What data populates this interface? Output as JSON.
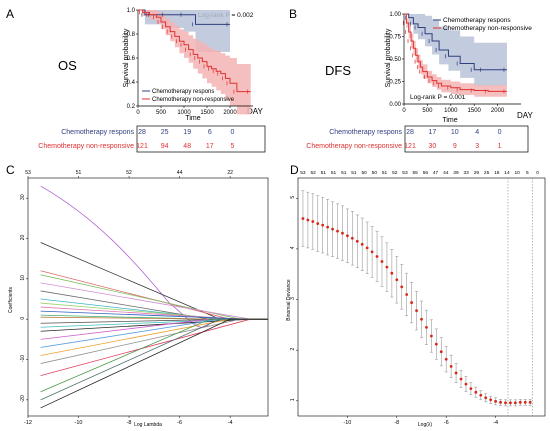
{
  "panels": {
    "A": {
      "letter": "A",
      "label": "OS",
      "pvalue": "Log-rank  P = 0.002"
    },
    "B": {
      "letter": "B",
      "label": "DFS",
      "pvalue": "Log-rank  P = 0.001"
    },
    "C": {
      "letter": "C"
    },
    "D": {
      "letter": "D"
    }
  },
  "colors": {
    "respons": "#2f3f7f",
    "nonresp": "#e03030",
    "respons_band": "#b9c2d8",
    "nonresp_band": "#f4b4b4",
    "lasso_point": "#d8281c",
    "grey": "#9a9a9a"
  },
  "legend": {
    "respons": "Chemotherapy respons",
    "nonresp": "Chemotherapy non-responsive"
  },
  "risk_table": {
    "A": {
      "respons": [
        "28",
        "25",
        "19",
        "6",
        "0"
      ],
      "nonresp": [
        "121",
        "94",
        "48",
        "17",
        "5"
      ]
    },
    "B": {
      "respons": [
        "28",
        "17",
        "10",
        "4",
        "0"
      ],
      "nonresp": [
        "121",
        "30",
        "9",
        "3",
        "1"
      ]
    }
  },
  "chart_data": [
    {
      "type": "line",
      "panel": "A",
      "xlabel": "Time",
      "ylabel": "Survival probability",
      "x_unit": "DAY",
      "xlim": [
        0,
        2500
      ],
      "ylim": [
        0.2,
        1.0
      ],
      "xticks": [
        "0",
        "500",
        "1000",
        "1500",
        "2000"
      ],
      "yticks": [
        "0.2",
        "0.4",
        "0.6",
        "0.8",
        "1.0"
      ],
      "series": [
        {
          "name": "Chemotherapy respons",
          "x": [
            0,
            150,
            300,
            600,
            1000,
            1250,
            2000
          ],
          "y": [
            1.0,
            0.96,
            0.96,
            0.96,
            0.96,
            0.88,
            0.88
          ],
          "lower": [
            1.0,
            0.88,
            0.88,
            0.85,
            0.82,
            0.65,
            0.65
          ],
          "upper": [
            1.0,
            1.0,
            1.0,
            1.0,
            1.0,
            1.0,
            1.0
          ]
        },
        {
          "name": "Chemotherapy non-responsive",
          "x": [
            0,
            100,
            250,
            400,
            500,
            600,
            700,
            800,
            900,
            1000,
            1100,
            1200,
            1300,
            1400,
            1500,
            1600,
            1700,
            1800,
            1900,
            2000,
            2150,
            2450
          ],
          "y": [
            1.0,
            0.98,
            0.96,
            0.94,
            0.9,
            0.86,
            0.82,
            0.78,
            0.74,
            0.71,
            0.67,
            0.63,
            0.6,
            0.57,
            0.53,
            0.51,
            0.49,
            0.47,
            0.43,
            0.39,
            0.32,
            0.32
          ],
          "lower": [
            1.0,
            0.95,
            0.92,
            0.89,
            0.84,
            0.79,
            0.74,
            0.69,
            0.64,
            0.6,
            0.56,
            0.51,
            0.47,
            0.43,
            0.39,
            0.36,
            0.33,
            0.3,
            0.25,
            0.2,
            0.13,
            0.13
          ],
          "upper": [
            1.0,
            1.0,
            1.0,
            0.99,
            0.96,
            0.93,
            0.9,
            0.87,
            0.84,
            0.82,
            0.79,
            0.76,
            0.74,
            0.72,
            0.69,
            0.67,
            0.66,
            0.64,
            0.62,
            0.6,
            0.55,
            0.55
          ]
        }
      ]
    },
    {
      "type": "line",
      "panel": "B",
      "xlabel": "Time",
      "ylabel": "Survival probability",
      "x_unit": "DAY",
      "xlim": [
        0,
        2500
      ],
      "ylim": [
        0,
        1.0
      ],
      "xticks": [
        "0",
        "500",
        "1000",
        "1500",
        "2000"
      ],
      "yticks": [
        "0.00",
        "0.25",
        "0.50",
        "0.75",
        "1.00"
      ],
      "series": [
        {
          "name": "Chemotherapy respons",
          "x": [
            0,
            100,
            200,
            300,
            450,
            600,
            750,
            950,
            1200,
            1500,
            1700,
            2200
          ],
          "y": [
            1.0,
            0.96,
            0.89,
            0.85,
            0.78,
            0.7,
            0.6,
            0.53,
            0.45,
            0.38,
            0.38,
            0.38
          ],
          "lower": [
            1.0,
            0.88,
            0.78,
            0.72,
            0.64,
            0.55,
            0.44,
            0.37,
            0.29,
            0.2,
            0.2,
            0.2
          ],
          "upper": [
            1.0,
            1.0,
            1.0,
            1.0,
            0.98,
            0.94,
            0.86,
            0.82,
            0.75,
            0.68,
            0.68,
            0.68
          ]
        },
        {
          "name": "Chemotherapy non-responsive",
          "x": [
            0,
            50,
            100,
            150,
            200,
            250,
            300,
            350,
            400,
            500,
            600,
            700,
            800,
            1000,
            1200,
            1500,
            1800,
            2200
          ],
          "y": [
            1.0,
            0.9,
            0.8,
            0.7,
            0.62,
            0.54,
            0.47,
            0.41,
            0.36,
            0.3,
            0.26,
            0.23,
            0.2,
            0.18,
            0.16,
            0.15,
            0.14,
            0.14
          ],
          "lower": [
            1.0,
            0.85,
            0.73,
            0.62,
            0.54,
            0.46,
            0.39,
            0.33,
            0.28,
            0.23,
            0.19,
            0.16,
            0.13,
            0.11,
            0.1,
            0.08,
            0.08,
            0.08
          ],
          "upper": [
            1.0,
            0.95,
            0.87,
            0.78,
            0.7,
            0.62,
            0.55,
            0.49,
            0.44,
            0.37,
            0.33,
            0.3,
            0.27,
            0.25,
            0.23,
            0.21,
            0.21,
            0.21
          ]
        }
      ]
    },
    {
      "type": "line",
      "panel": "C",
      "xlabel": "Log Lambda",
      "ylabel": "Coefficients",
      "xlim": [
        -12,
        -2.5
      ],
      "ylim": [
        -24,
        35
      ],
      "xticks": [
        "-12",
        "-10",
        "-8",
        "-6",
        "-4"
      ],
      "yticks": [
        "-20",
        "-10",
        "0",
        "10",
        "20",
        "30"
      ],
      "top_ticks": [
        "53",
        "51",
        "52",
        "44",
        "22"
      ],
      "top_tick_x": [
        -12,
        -10,
        -8,
        -6,
        -4
      ],
      "path_end_x": -4,
      "paths": [
        {
          "start": 33,
          "color": "#b060d0",
          "wiggle": true
        },
        {
          "start": 19,
          "color": "#333333"
        },
        {
          "start": 12,
          "color": "#e06a6a"
        },
        {
          "start": 11,
          "color": "#7fbf5f"
        },
        {
          "start": 9,
          "color": "#d090d0"
        },
        {
          "start": 7,
          "color": "#6a6a6a"
        },
        {
          "start": 5,
          "color": "#3cb4c8"
        },
        {
          "start": 4,
          "color": "#9ad06a"
        },
        {
          "start": 3,
          "color": "#e07ab0"
        },
        {
          "start": 2,
          "color": "#3060c0"
        },
        {
          "start": 1,
          "color": "#40b070"
        },
        {
          "start": 0.5,
          "color": "#c08040"
        },
        {
          "start": -1,
          "color": "#505050"
        },
        {
          "start": -2,
          "color": "#40c0c0"
        },
        {
          "start": -3,
          "color": "#2a2a2a"
        },
        {
          "start": -5,
          "color": "#d060d0"
        },
        {
          "start": -7,
          "color": "#60a0e0"
        },
        {
          "start": -9,
          "color": "#f0a030"
        },
        {
          "start": -11,
          "color": "#909090"
        },
        {
          "start": -14,
          "color": "#e04060"
        },
        {
          "start": -18,
          "color": "#4a9a4a"
        },
        {
          "start": -20,
          "color": "#507070"
        },
        {
          "start": -22,
          "color": "#202020"
        }
      ]
    },
    {
      "type": "scatter",
      "panel": "D",
      "xlabel": "Log(λ)",
      "ylabel": "Binomial Deviance",
      "xlim": [
        -12,
        -2
      ],
      "ylim": [
        0.7,
        5.4
      ],
      "xticks": [
        "-10",
        "-8",
        "-6",
        "-4"
      ],
      "yticks": [
        "1",
        "2",
        "3",
        "4",
        "5"
      ],
      "top_ticks": [
        "53",
        "52",
        "51",
        "51",
        "51",
        "51",
        "50",
        "50",
        "51",
        "52",
        "53",
        "55",
        "56",
        "47",
        "44",
        "39",
        "33",
        "29",
        "25",
        "18",
        "14",
        "10",
        "5",
        "0"
      ],
      "vlines": [
        -3.5,
        -2.5
      ],
      "x": [
        -11.8,
        -11.6,
        -11.4,
        -11.2,
        -11.0,
        -10.8,
        -10.6,
        -10.4,
        -10.2,
        -10.0,
        -9.8,
        -9.6,
        -9.4,
        -9.2,
        -9.0,
        -8.8,
        -8.6,
        -8.4,
        -8.2,
        -8.0,
        -7.8,
        -7.6,
        -7.4,
        -7.2,
        -7.0,
        -6.8,
        -6.6,
        -6.4,
        -6.2,
        -6.0,
        -5.8,
        -5.6,
        -5.4,
        -5.2,
        -5.0,
        -4.8,
        -4.6,
        -4.4,
        -4.2,
        -4.0,
        -3.8,
        -3.6,
        -3.4,
        -3.2,
        -3.0,
        -2.8,
        -2.6
      ],
      "y": [
        4.6,
        4.57,
        4.54,
        4.5,
        4.47,
        4.43,
        4.39,
        4.35,
        4.31,
        4.26,
        4.21,
        4.15,
        4.09,
        4.02,
        3.94,
        3.85,
        3.75,
        3.64,
        3.52,
        3.39,
        3.25,
        3.1,
        2.94,
        2.78,
        2.61,
        2.45,
        2.28,
        2.12,
        1.97,
        1.82,
        1.68,
        1.55,
        1.43,
        1.33,
        1.24,
        1.17,
        1.11,
        1.06,
        1.02,
        0.99,
        0.97,
        0.96,
        0.96,
        0.96,
        0.97,
        0.97,
        0.97
      ],
      "err": [
        0.55,
        0.55,
        0.55,
        0.55,
        0.55,
        0.55,
        0.54,
        0.54,
        0.54,
        0.53,
        0.53,
        0.52,
        0.52,
        0.51,
        0.5,
        0.5,
        0.49,
        0.48,
        0.47,
        0.46,
        0.44,
        0.42,
        0.4,
        0.38,
        0.36,
        0.34,
        0.32,
        0.3,
        0.28,
        0.25,
        0.22,
        0.19,
        0.17,
        0.15,
        0.12,
        0.1,
        0.09,
        0.08,
        0.07,
        0.07,
        0.06,
        0.06,
        0.06,
        0.06,
        0.06,
        0.06,
        0.06
      ]
    }
  ]
}
